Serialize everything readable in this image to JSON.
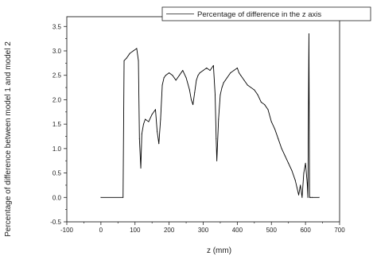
{
  "chart_data": {
    "type": "line",
    "xlabel": "z (mm)",
    "ylabel": "Percentage of difference between model 1 and model 2",
    "xlim": [
      -100,
      700
    ],
    "ylim": [
      -0.5,
      3.7
    ],
    "x_ticks": [
      -100,
      0,
      100,
      200,
      300,
      400,
      500,
      600,
      700
    ],
    "y_ticks": [
      -0.5,
      0.0,
      0.5,
      1.0,
      1.5,
      2.0,
      2.5,
      3.0,
      3.5
    ],
    "x_tick_labels": [
      "-100",
      "0",
      "100",
      "200",
      "300",
      "400",
      "500",
      "600",
      "700"
    ],
    "y_tick_labels": [
      "-0.5",
      "0.0",
      "0.5",
      "1.0",
      "1.5",
      "2.0",
      "2.5",
      "3.0",
      "3.5"
    ],
    "grid": false,
    "legend_position": "top-right",
    "line_color": "#000000",
    "series": [
      {
        "name": "Percentage of difference in the  z axis",
        "x": [
          0,
          65,
          68,
          75,
          85,
          95,
          105,
          110,
          113,
          117,
          120,
          125,
          130,
          140,
          150,
          160,
          165,
          170,
          175,
          180,
          185,
          190,
          200,
          210,
          220,
          230,
          240,
          250,
          260,
          265,
          270,
          275,
          280,
          285,
          290,
          300,
          310,
          320,
          330,
          335,
          338,
          340,
          345,
          350,
          355,
          360,
          365,
          370,
          380,
          390,
          400,
          405,
          410,
          420,
          430,
          440,
          450,
          460,
          470,
          480,
          490,
          500,
          510,
          520,
          530,
          540,
          550,
          560,
          570,
          575,
          580,
          585,
          590,
          595,
          600,
          605,
          607,
          610,
          612,
          615,
          620,
          640
        ],
        "y": [
          0.0,
          0.0,
          2.8,
          2.85,
          2.95,
          3.0,
          3.05,
          2.8,
          1.2,
          0.6,
          1.3,
          1.5,
          1.6,
          1.55,
          1.7,
          1.8,
          1.35,
          1.1,
          1.6,
          2.3,
          2.45,
          2.5,
          2.55,
          2.5,
          2.4,
          2.5,
          2.6,
          2.45,
          2.2,
          2.0,
          1.9,
          2.15,
          2.4,
          2.5,
          2.55,
          2.6,
          2.65,
          2.6,
          2.7,
          2.1,
          1.2,
          0.75,
          1.6,
          2.1,
          2.25,
          2.35,
          2.4,
          2.45,
          2.55,
          2.6,
          2.65,
          2.55,
          2.5,
          2.4,
          2.3,
          2.25,
          2.2,
          2.1,
          1.95,
          1.9,
          1.8,
          1.55,
          1.4,
          1.2,
          1.0,
          0.85,
          0.7,
          0.55,
          0.35,
          0.2,
          0.05,
          0.25,
          0.0,
          0.5,
          0.7,
          0.3,
          0.0,
          3.35,
          0.0,
          0.0,
          0.0,
          0.0
        ]
      }
    ]
  }
}
